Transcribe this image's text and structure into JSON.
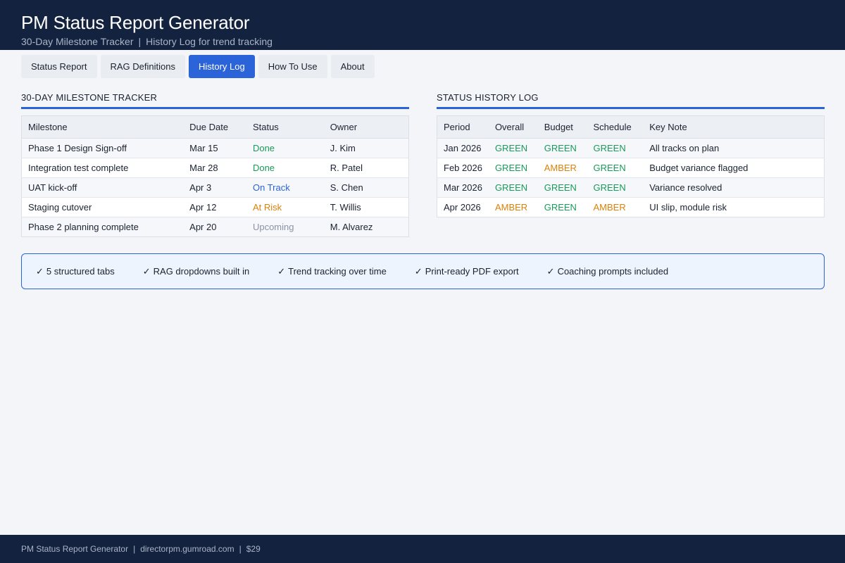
{
  "header": {
    "title": "PM Status Report Generator",
    "subtitle_part1": "30-Day Milestone Tracker",
    "subtitle_sep": "|",
    "subtitle_part2": "History Log for trend tracking"
  },
  "tabs": [
    {
      "label": "Status Report",
      "active": false
    },
    {
      "label": "RAG Definitions",
      "active": false
    },
    {
      "label": "History Log",
      "active": true
    },
    {
      "label": "How To Use",
      "active": false
    },
    {
      "label": "About",
      "active": false
    }
  ],
  "milestones": {
    "title": "30-DAY MILESTONE TRACKER",
    "columns": [
      "Milestone",
      "Due Date",
      "Status",
      "Owner"
    ],
    "rows": [
      {
        "milestone": "Phase 1 Design Sign-off",
        "due": "Mar 15",
        "status": "Done",
        "owner": "J. Kim"
      },
      {
        "milestone": "Integration test complete",
        "due": "Mar 28",
        "status": "Done",
        "owner": "R. Patel"
      },
      {
        "milestone": "UAT kick-off",
        "due": "Apr 3",
        "status": "On Track",
        "owner": "S. Chen"
      },
      {
        "milestone": "Staging cutover",
        "due": "Apr 12",
        "status": "At Risk",
        "owner": "T. Willis"
      },
      {
        "milestone": "Phase 2 planning complete",
        "due": "Apr 20",
        "status": "Upcoming",
        "owner": "M. Alvarez"
      }
    ]
  },
  "history": {
    "title": "STATUS HISTORY LOG",
    "columns": [
      "Period",
      "Overall",
      "Budget",
      "Schedule",
      "Key Note"
    ],
    "rows": [
      {
        "period": "Jan 2026",
        "overall": "GREEN",
        "budget": "GREEN",
        "schedule": "GREEN",
        "note": "All tracks on plan"
      },
      {
        "period": "Feb 2026",
        "overall": "GREEN",
        "budget": "AMBER",
        "schedule": "GREEN",
        "note": "Budget variance flagged"
      },
      {
        "period": "Mar 2026",
        "overall": "GREEN",
        "budget": "GREEN",
        "schedule": "GREEN",
        "note": "Variance resolved"
      },
      {
        "period": "Apr 2026",
        "overall": "AMBER",
        "budget": "GREEN",
        "schedule": "AMBER",
        "note": "UI slip, module risk"
      }
    ]
  },
  "features": {
    "check": "✓",
    "items": [
      "5 structured tabs",
      "RAG dropdowns built in",
      "Trend tracking over time",
      "Print-ready PDF export",
      "Coaching prompts included"
    ]
  },
  "footer": {
    "product": "PM Status Report Generator",
    "sep": "|",
    "url": "directorpm.gumroad.com",
    "price": "$29"
  },
  "colors": {
    "navy": "#13233f",
    "accent_blue": "#2b63d9",
    "green": "#1a9a5a",
    "amber": "#d98209",
    "upcoming_gray": "#8a93a3"
  }
}
